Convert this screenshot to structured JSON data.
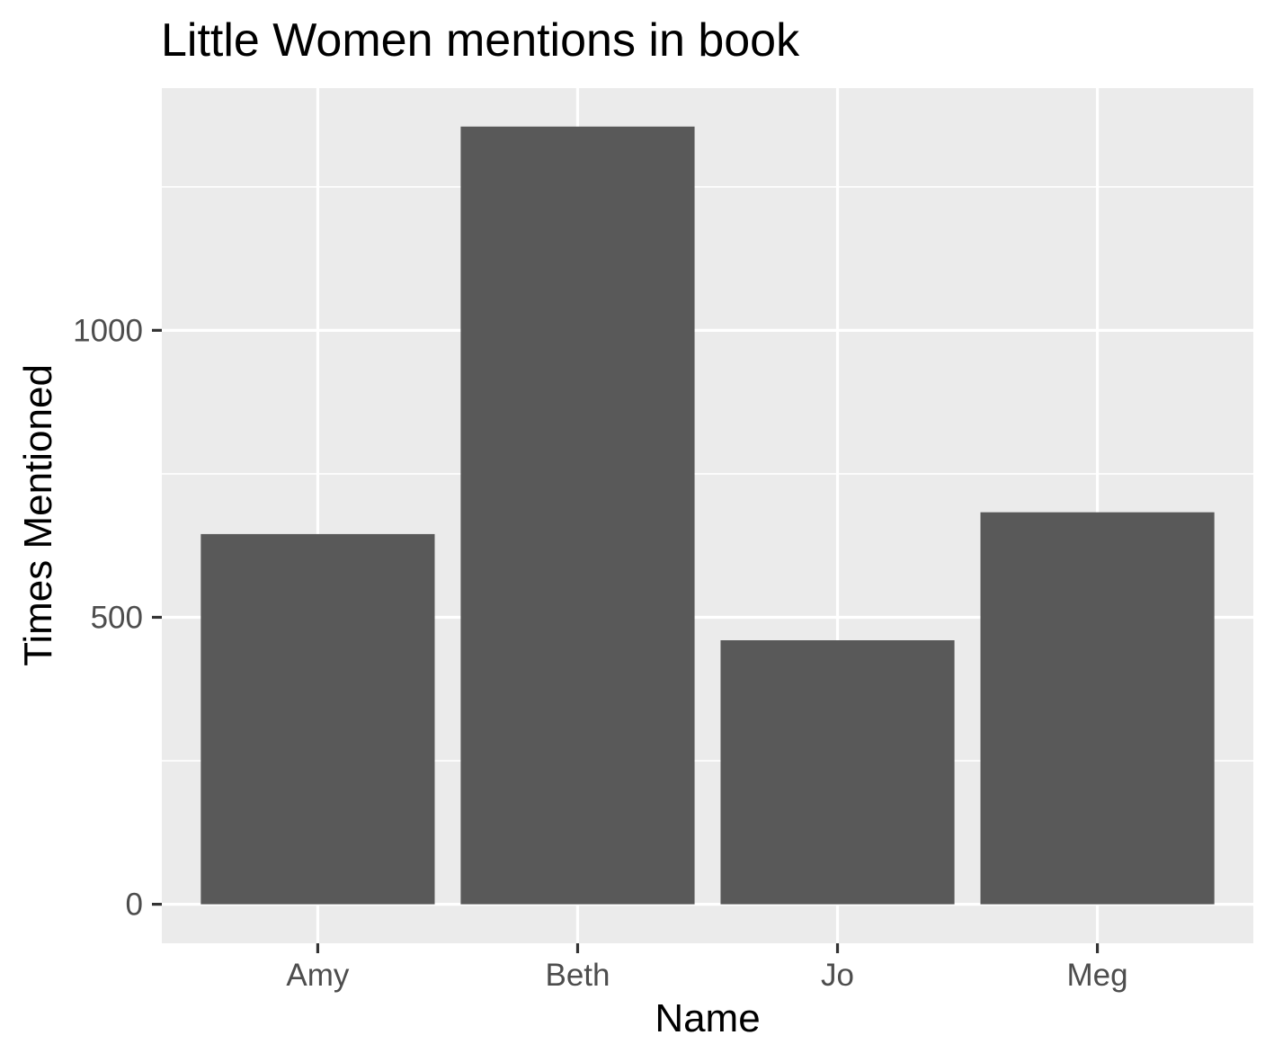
{
  "chart_data": {
    "type": "bar",
    "title": "Little Women mentions in book",
    "xlabel": "Name",
    "ylabel": "Times Mentioned",
    "categories": [
      "Amy",
      "Beth",
      "Jo",
      "Meg"
    ],
    "values": [
      645,
      1355,
      460,
      683
    ],
    "ylim": [
      -68,
      1422
    ],
    "yticks": [
      0,
      500,
      1000
    ],
    "ytick_labels": [
      "0",
      "500",
      "1000"
    ],
    "grid": true,
    "legend": "none",
    "colors": {
      "bar": "#595959",
      "panel": "#ebebeb",
      "grid": "#ffffff",
      "tick": "#333333"
    }
  }
}
